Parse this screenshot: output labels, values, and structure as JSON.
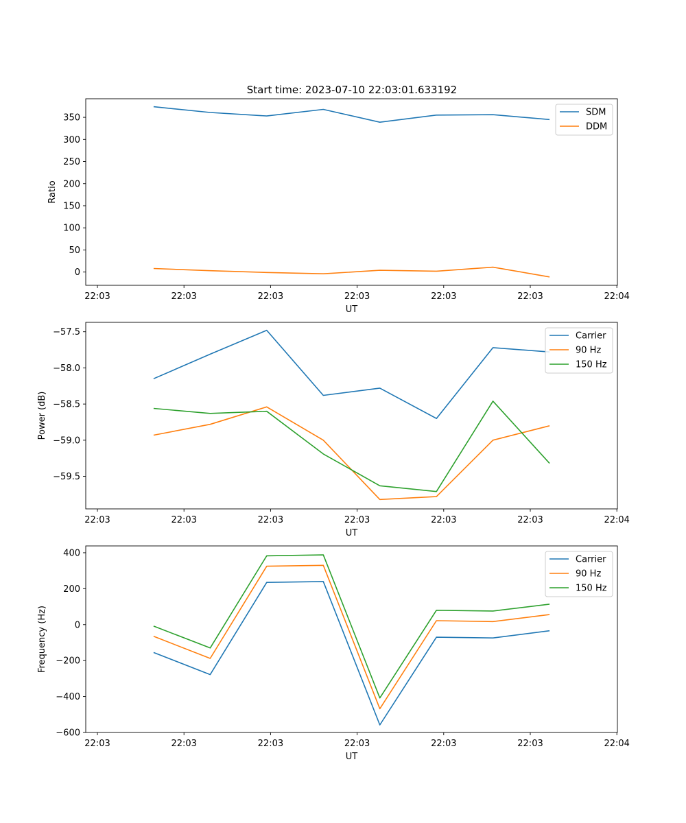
{
  "figure_title": "Start time: 2023-07-10 22:03:01.633192",
  "colors": {
    "c0": "#1f77b4",
    "c1": "#ff7f0e",
    "c2": "#2ca02c"
  },
  "chart_data": [
    {
      "type": "line",
      "xlabel": "UT",
      "ylabel": "Ratio",
      "xtick_labels": [
        "22:03",
        "22:03",
        "22:03",
        "22:03",
        "22:03",
        "22:03",
        "22:04"
      ],
      "x": [
        0.5,
        1.0,
        1.5,
        2.0,
        2.5,
        3.0,
        3.5,
        4.0
      ],
      "xlim": [
        -0.1,
        4.6
      ],
      "ylim": [
        -30,
        392
      ],
      "yticks": [
        0,
        50,
        100,
        150,
        200,
        250,
        300,
        350
      ],
      "ytick_labels": [
        "0",
        "50",
        "100",
        "150",
        "200",
        "250",
        "300",
        "350"
      ],
      "legend_position": "top-right",
      "series": [
        {
          "name": "SDM",
          "color": "#1f77b4",
          "values": [
            374,
            361,
            353,
            368,
            339,
            355,
            356,
            345
          ]
        },
        {
          "name": "DDM",
          "color": "#ff7f0e",
          "values": [
            8,
            3,
            -1,
            -4,
            4,
            2,
            11,
            -11
          ]
        }
      ]
    },
    {
      "type": "line",
      "xlabel": "UT",
      "ylabel": "Power (dB)",
      "xtick_labels": [
        "22:03",
        "22:03",
        "22:03",
        "22:03",
        "22:03",
        "22:03",
        "22:04"
      ],
      "x": [
        0.5,
        1.0,
        1.5,
        2.0,
        2.5,
        3.0,
        3.5,
        4.0
      ],
      "xlim": [
        -0.1,
        4.6
      ],
      "ylim": [
        -59.95,
        -57.37
      ],
      "yticks": [
        -57.5,
        -58.0,
        -58.5,
        -59.0,
        -59.5
      ],
      "ytick_labels": [
        "−57.5",
        "−58.0",
        "−58.5",
        "−59.0",
        "−59.5"
      ],
      "legend_position": "top-right",
      "series": [
        {
          "name": "Carrier",
          "color": "#1f77b4",
          "values": [
            -58.15,
            -57.81,
            -57.48,
            -58.38,
            -58.28,
            -58.7,
            -57.72,
            -57.78
          ]
        },
        {
          "name": "90 Hz",
          "color": "#ff7f0e",
          "values": [
            -58.93,
            -58.78,
            -58.54,
            -59.0,
            -59.82,
            -59.78,
            -59.0,
            -58.8
          ]
        },
        {
          "name": "150 Hz",
          "color": "#2ca02c",
          "values": [
            -58.56,
            -58.63,
            -58.6,
            -59.19,
            -59.63,
            -59.71,
            -58.46,
            -59.32
          ]
        }
      ]
    },
    {
      "type": "line",
      "xlabel": "UT",
      "ylabel": "Frequency (Hz)",
      "xtick_labels": [
        "22:03",
        "22:03",
        "22:03",
        "22:03",
        "22:03",
        "22:03",
        "22:04"
      ],
      "x": [
        0.5,
        1.0,
        1.5,
        2.0,
        2.5,
        3.0,
        3.5,
        4.0
      ],
      "xlim": [
        -0.1,
        4.6
      ],
      "ylim": [
        -600,
        438
      ],
      "yticks": [
        400,
        200,
        0,
        -200,
        -400,
        -600
      ],
      "ytick_labels": [
        "400",
        "200",
        "0",
        "−200",
        "−400",
        "−600"
      ],
      "legend_position": "top-right",
      "series": [
        {
          "name": "Carrier",
          "color": "#1f77b4",
          "values": [
            -155,
            -278,
            235,
            240,
            -558,
            -70,
            -74,
            -34
          ]
        },
        {
          "name": "90 Hz",
          "color": "#ff7f0e",
          "values": [
            -65,
            -188,
            325,
            330,
            -468,
            22,
            17,
            56
          ]
        },
        {
          "name": "150 Hz",
          "color": "#2ca02c",
          "values": [
            -8,
            -130,
            383,
            388,
            -408,
            80,
            76,
            114
          ]
        }
      ]
    }
  ]
}
